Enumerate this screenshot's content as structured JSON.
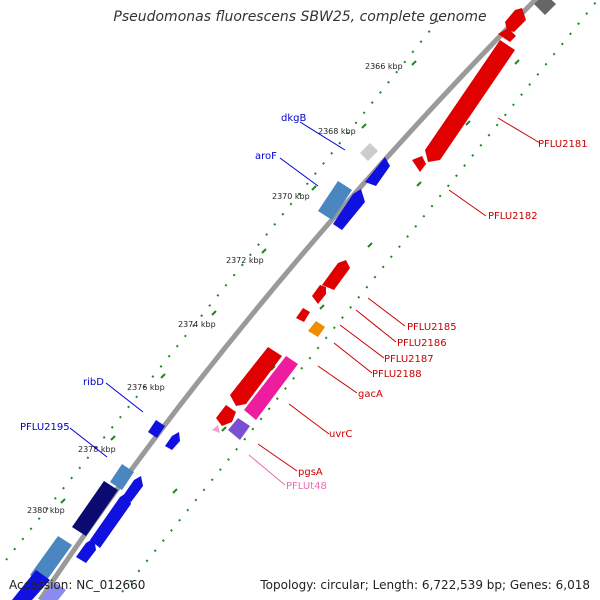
{
  "title": "Pseudomonas fluorescens SBW25, complete genome",
  "footer": {
    "accession": "Accession: NC_012660",
    "summary": "Topology: circular; Length: 6,722,539 bp; Genes: 6,018"
  },
  "scale": {
    "ticks": [
      "2366 kbp",
      "2368 kbp",
      "2370 kbp",
      "2372 kbp",
      "2374 kbp",
      "2376 kbp",
      "2378 kbp",
      "2380 kbp"
    ]
  },
  "colors": {
    "backbone": "#9a9a9a",
    "tick": "#1f8a1f",
    "forward_label": "#0000cc",
    "reverse_label": "#cc0000",
    "trna_label": "#e96fb0"
  },
  "labels": {
    "forward": [
      "dkgB",
      "aroF",
      "ribD",
      "PFLU2195"
    ],
    "reverse": [
      "PFLU2181",
      "PFLU2182",
      "PFLU2185",
      "PFLU2186",
      "PFLU2187",
      "PFLU2188",
      "gacA",
      "uvrC",
      "pgsA"
    ],
    "trna": [
      "PFLUt48"
    ]
  }
}
